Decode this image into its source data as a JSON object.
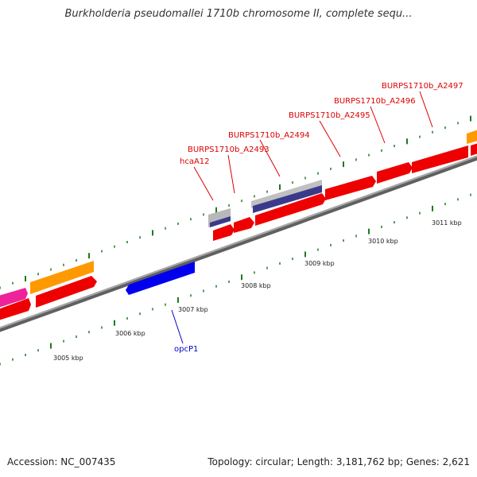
{
  "title": "Burkholderia pseudomallei 1710b chromosome II, complete sequ...",
  "footer": {
    "accession": "Accession: NC_007435",
    "topology": "Topology: circular; Length: 3,181,762 bp; Genes: 2,621"
  },
  "colors": {
    "background": "#ffffff",
    "backbone": "#808080",
    "tick": "#1f7a1f",
    "red_gene": "#ee0000",
    "orange_gene": "#ff9900",
    "magenta_gene": "#ee2299",
    "blue_gene": "#0000ee",
    "grey_feature": "#b8b8b8",
    "navy_feature": "#3a3a8c",
    "label_red": "#dd0000",
    "label_blue": "#0000cc",
    "axis_label": "#222222"
  },
  "axis": {
    "unit": "kbp",
    "labels": [
      "3005 kbp",
      "3006 kbp",
      "3007 kbp",
      "3008 kbp",
      "3009 kbp",
      "3010 kbp",
      "3011 kbp"
    ]
  },
  "gene_labels": [
    {
      "text": "hcaA12",
      "color": "red"
    },
    {
      "text": "BURPS1710b_A2493",
      "color": "red"
    },
    {
      "text": "BURPS1710b_A2494",
      "color": "red"
    },
    {
      "text": "BURPS1710b_A2495",
      "color": "red"
    },
    {
      "text": "BURPS1710b_A2496",
      "color": "red"
    },
    {
      "text": "BURPS1710b_A2497",
      "color": "red"
    },
    {
      "text": "opcP1",
      "color": "blue"
    }
  ]
}
